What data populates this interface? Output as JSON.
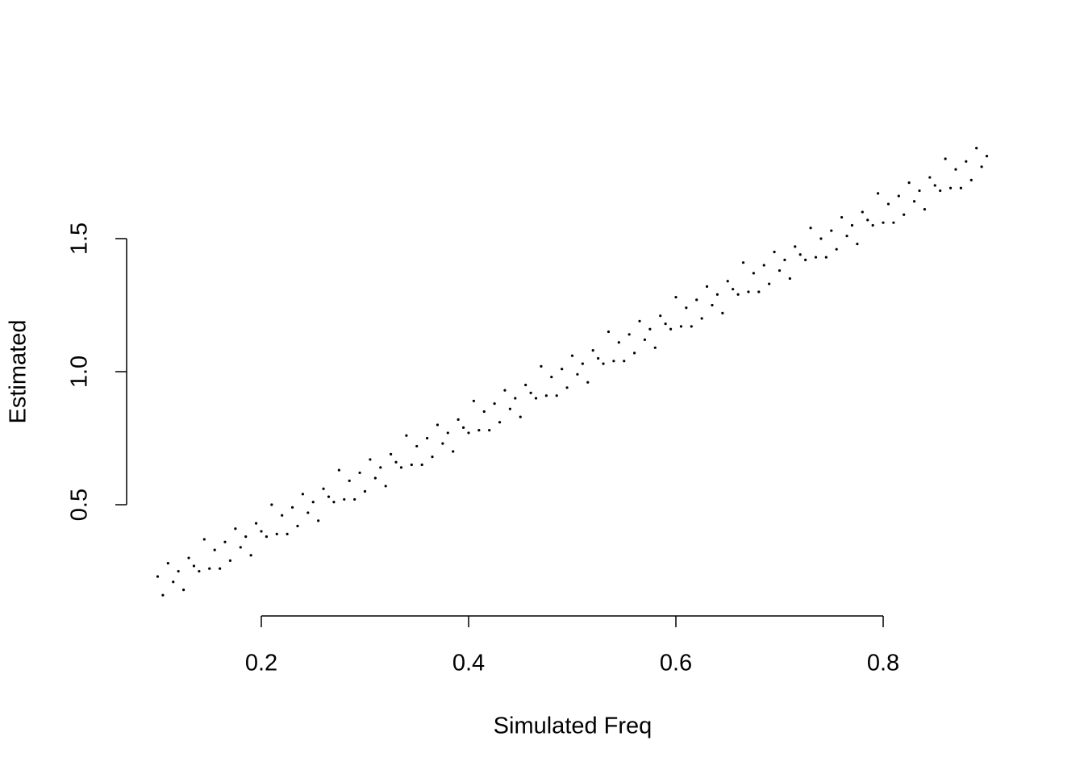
{
  "chart_data": {
    "type": "scatter",
    "x_label": "Simulated Freq",
    "y_label": "Estimated",
    "xlim": [
      0.072,
      0.928
    ],
    "ylim": [
      0.082,
      1.918
    ],
    "xticks": [
      0.2,
      0.4,
      0.6,
      0.8
    ],
    "yticks": [
      {
        "value": 0.5,
        "label": "0.5"
      },
      {
        "value": 1,
        "label": "1.0"
      },
      {
        "value": 1.5,
        "label": "1.5"
      }
    ],
    "color": "#000000",
    "x": [
      0.1,
      0.105,
      0.11,
      0.115,
      0.12,
      0.125,
      0.13,
      0.135,
      0.14,
      0.145,
      0.15,
      0.155,
      0.16,
      0.165,
      0.17,
      0.175,
      0.18,
      0.185,
      0.19,
      0.195,
      0.2,
      0.205,
      0.21,
      0.215,
      0.22,
      0.225,
      0.23,
      0.235,
      0.24,
      0.245,
      0.25,
      0.255,
      0.26,
      0.265,
      0.27,
      0.275,
      0.28,
      0.285,
      0.29,
      0.295,
      0.3,
      0.305,
      0.31,
      0.315,
      0.32,
      0.325,
      0.33,
      0.335,
      0.34,
      0.345,
      0.35,
      0.355,
      0.36,
      0.365,
      0.37,
      0.375,
      0.38,
      0.385,
      0.39,
      0.395,
      0.4,
      0.405,
      0.41,
      0.415,
      0.42,
      0.425,
      0.43,
      0.435,
      0.44,
      0.445,
      0.45,
      0.455,
      0.46,
      0.465,
      0.47,
      0.475,
      0.48,
      0.485,
      0.49,
      0.495,
      0.5,
      0.505,
      0.51,
      0.515,
      0.52,
      0.525,
      0.53,
      0.535,
      0.54,
      0.545,
      0.55,
      0.555,
      0.56,
      0.565,
      0.57,
      0.575,
      0.58,
      0.585,
      0.59,
      0.595,
      0.6,
      0.605,
      0.61,
      0.615,
      0.62,
      0.625,
      0.63,
      0.635,
      0.64,
      0.645,
      0.65,
      0.655,
      0.66,
      0.665,
      0.67,
      0.675,
      0.68,
      0.685,
      0.69,
      0.695,
      0.7,
      0.705,
      0.71,
      0.715,
      0.72,
      0.725,
      0.73,
      0.735,
      0.74,
      0.745,
      0.75,
      0.755,
      0.76,
      0.765,
      0.77,
      0.775,
      0.78,
      0.785,
      0.79,
      0.795,
      0.8,
      0.805,
      0.81,
      0.815,
      0.82,
      0.825,
      0.83,
      0.835,
      0.84,
      0.845,
      0.85,
      0.855,
      0.86,
      0.865,
      0.87,
      0.875,
      0.88,
      0.885,
      0.89,
      0.895,
      0.9
    ],
    "values": [
      0.23,
      0.16,
      0.28,
      0.21,
      0.25,
      0.18,
      0.3,
      0.27,
      0.25,
      0.37,
      0.26,
      0.33,
      0.26,
      0.36,
      0.29,
      0.41,
      0.34,
      0.38,
      0.31,
      0.43,
      0.4,
      0.38,
      0.5,
      0.39,
      0.46,
      0.39,
      0.49,
      0.42,
      0.54,
      0.47,
      0.51,
      0.44,
      0.56,
      0.53,
      0.51,
      0.63,
      0.52,
      0.59,
      0.52,
      0.62,
      0.55,
      0.67,
      0.6,
      0.64,
      0.57,
      0.69,
      0.66,
      0.64,
      0.76,
      0.65,
      0.72,
      0.65,
      0.75,
      0.68,
      0.8,
      0.73,
      0.77,
      0.7,
      0.82,
      0.79,
      0.77,
      0.89,
      0.78,
      0.85,
      0.78,
      0.88,
      0.81,
      0.93,
      0.86,
      0.9,
      0.83,
      0.95,
      0.92,
      0.9,
      1.02,
      0.91,
      0.98,
      0.91,
      1.01,
      0.94,
      1.06,
      0.99,
      1.03,
      0.96,
      1.08,
      1.05,
      1.03,
      1.15,
      1.04,
      1.11,
      1.04,
      1.14,
      1.07,
      1.19,
      1.12,
      1.16,
      1.09,
      1.21,
      1.18,
      1.16,
      1.28,
      1.17,
      1.24,
      1.17,
      1.27,
      1.2,
      1.32,
      1.25,
      1.29,
      1.22,
      1.34,
      1.31,
      1.29,
      1.41,
      1.3,
      1.37,
      1.3,
      1.4,
      1.33,
      1.45,
      1.38,
      1.42,
      1.35,
      1.47,
      1.44,
      1.42,
      1.54,
      1.43,
      1.5,
      1.43,
      1.53,
      1.46,
      1.58,
      1.51,
      1.55,
      1.48,
      1.6,
      1.57,
      1.55,
      1.67,
      1.56,
      1.63,
      1.56,
      1.66,
      1.59,
      1.71,
      1.64,
      1.68,
      1.61,
      1.73,
      1.7,
      1.68,
      1.8,
      1.69,
      1.76,
      1.69,
      1.79,
      1.72,
      1.84,
      1.77,
      1.81
    ]
  }
}
